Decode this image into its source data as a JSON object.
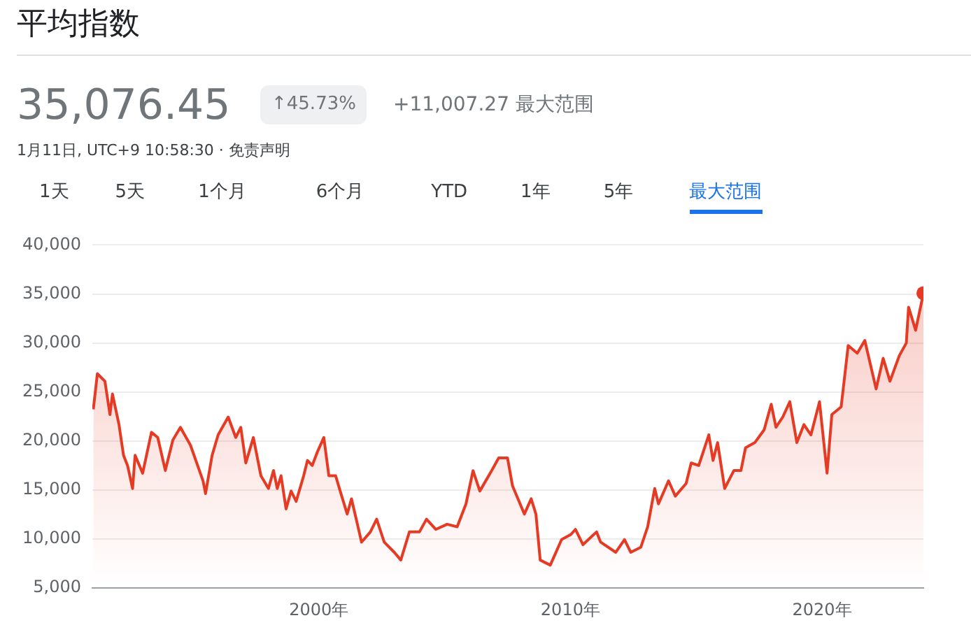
{
  "chart_data": {
    "type": "area",
    "title": "平均指数",
    "subtitle": "35,076.45",
    "annotations": [
      "↑45.73%",
      "+11,007.27 最大范围",
      "1月11日, UTC+9 10:58:30 · 免责声明",
      "1天",
      "5天",
      "1个月",
      "6个月",
      "YTD",
      "1年",
      "5年",
      "最大范围"
    ],
    "xlim": [
      1991.0,
      2024.03
    ],
    "xticks": [
      {
        "value": 2000,
        "label": "2000年"
      },
      {
        "value": 2010,
        "label": "2010年"
      },
      {
        "value": 2020,
        "label": "2020年"
      }
    ],
    "ylim": [
      5000,
      40000
    ],
    "yticks": [
      {
        "value": 5000,
        "label": "5,000"
      },
      {
        "value": 10000,
        "label": "10,000"
      },
      {
        "value": 15000,
        "label": "15,000"
      },
      {
        "value": 20000,
        "label": "20,000"
      },
      {
        "value": 25000,
        "label": "25,000"
      },
      {
        "value": 30000,
        "label": "30,000"
      },
      {
        "value": 35000,
        "label": "35,000"
      },
      {
        "value": 40000,
        "label": "40,000"
      }
    ],
    "grid": "y",
    "legend": false,
    "marker": "none",
    "line_style": "solid",
    "series": [
      {
        "color": "#e53a24",
        "x": [
          1991.04,
          1991.2,
          1991.5,
          1991.7,
          1991.8,
          1992.06,
          1992.24,
          1992.4,
          1992.6,
          1992.7,
          1993.0,
          1993.35,
          1993.6,
          1993.9,
          1994.2,
          1994.5,
          1994.9,
          1995.4,
          1995.5,
          1995.76,
          1996.0,
          1996.4,
          1996.7,
          1996.9,
          1997.1,
          1997.4,
          1997.7,
          1998.0,
          1998.2,
          1998.35,
          1998.5,
          1998.7,
          1998.9,
          1999.1,
          1999.4,
          1999.55,
          1999.74,
          1999.93,
          2000.2,
          2000.4,
          2000.67,
          2000.85,
          2001.13,
          2001.3,
          2001.7,
          2002.05,
          2002.3,
          2002.6,
          2003.0,
          2003.26,
          2003.6,
          2004.0,
          2004.28,
          2004.65,
          2005.1,
          2005.5,
          2005.85,
          2006.13,
          2006.4,
          2006.87,
          2007.15,
          2007.5,
          2007.7,
          2008.17,
          2008.44,
          2008.63,
          2008.8,
          2009.2,
          2009.65,
          2010.02,
          2010.2,
          2010.5,
          2011.04,
          2011.2,
          2011.8,
          2012.15,
          2012.4,
          2012.8,
          2013.07,
          2013.35,
          2013.5,
          2013.9,
          2014.17,
          2014.6,
          2014.8,
          2015.1,
          2015.5,
          2015.67,
          2015.85,
          2016.13,
          2016.5,
          2016.78,
          2016.96,
          2017.33,
          2017.7,
          2017.98,
          2018.17,
          2018.44,
          2018.72,
          2019.0,
          2019.28,
          2019.56,
          2019.9,
          2020.2,
          2020.39,
          2020.76,
          2021.04,
          2021.4,
          2021.7,
          2022.15,
          2022.43,
          2022.7,
          2023.07,
          2023.35,
          2023.44,
          2023.72,
          2024.03
        ],
        "values": [
          23230,
          26870,
          26100,
          22700,
          24800,
          21670,
          18540,
          17500,
          15160,
          18540,
          16720,
          20890,
          20360,
          17000,
          20100,
          21400,
          19580,
          15940,
          14640,
          18540,
          20630,
          22450,
          20360,
          21400,
          17760,
          20360,
          16460,
          15160,
          17000,
          15160,
          16460,
          13070,
          14900,
          13850,
          16460,
          18020,
          17500,
          18800,
          20360,
          16460,
          16460,
          14900,
          12550,
          14110,
          9690,
          10730,
          12030,
          9690,
          8650,
          7860,
          10730,
          10730,
          12030,
          10990,
          11510,
          11250,
          13590,
          16980,
          14900,
          16980,
          18280,
          18280,
          15420,
          12550,
          14110,
          12550,
          7860,
          7340,
          9950,
          10470,
          10990,
          9430,
          10730,
          9690,
          8650,
          9950,
          8650,
          9170,
          11250,
          15160,
          13590,
          15940,
          14380,
          15680,
          17760,
          17500,
          20630,
          18020,
          19840,
          15160,
          17000,
          17000,
          19320,
          19840,
          21150,
          23750,
          21410,
          22450,
          24010,
          19840,
          21670,
          20630,
          24010,
          16720,
          22700,
          23490,
          29740,
          28960,
          30260,
          25310,
          28440,
          26100,
          28700,
          30000,
          33650,
          31300,
          35076.45
        ]
      }
    ]
  }
}
